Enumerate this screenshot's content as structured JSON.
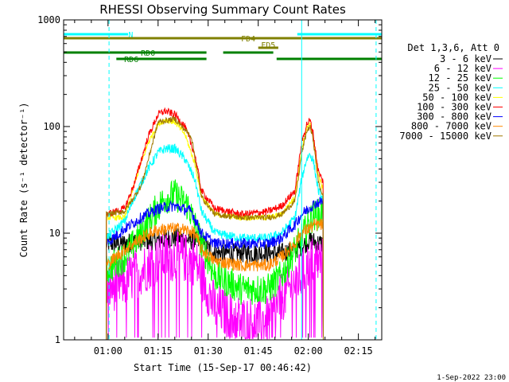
{
  "chart_data": {
    "type": "line",
    "title": "RHESSI Observing Summary Count Rates",
    "xlabel": "Start Time (15-Sep-17 00:46:42)",
    "ylabel": "Count Rate (s⁻¹ detector⁻¹)",
    "y_scale": "log",
    "ylim": [
      1,
      1000
    ],
    "xlim_minutes": [
      46.7,
      142.0
    ],
    "x_ticks": [
      {
        "minute": 60,
        "label": "01:00"
      },
      {
        "minute": 75,
        "label": "01:15"
      },
      {
        "minute": 90,
        "label": "01:30"
      },
      {
        "minute": 105,
        "label": "01:45"
      },
      {
        "minute": 120,
        "label": "02:00"
      },
      {
        "minute": 135,
        "label": "02:15"
      }
    ],
    "y_ticks": [
      {
        "value": 1,
        "label": "1"
      },
      {
        "value": 10,
        "label": "10"
      },
      {
        "value": 100,
        "label": "100"
      },
      {
        "value": 1000,
        "label": "1000"
      }
    ],
    "legend_title": "Det 1,3,6, Att 0",
    "legend_position": "right",
    "x_note": "x values are minutes after 00:00 UT, 15-Sep-17",
    "series": [
      {
        "name": "3 - 6 keV",
        "color": "#000000",
        "x": [
          59.5,
          65,
          70,
          75,
          78,
          82,
          86,
          88,
          92,
          100,
          108,
          112,
          116,
          118,
          120,
          121,
          123,
          124.5
        ],
        "values": [
          8,
          8,
          8.5,
          8.5,
          9,
          9,
          8.5,
          8,
          6.5,
          6.5,
          6.5,
          6.5,
          7,
          7.5,
          8.5,
          8.5,
          8,
          8
        ]
      },
      {
        "name": "6 - 12 keV",
        "color": "#ff00ff",
        "x": [
          59.5,
          65,
          70,
          74,
          78,
          82,
          86,
          88,
          92,
          100,
          108,
          112,
          116,
          118,
          120,
          121,
          123,
          124.5
        ],
        "values": [
          3,
          3.5,
          4.5,
          5.5,
          6,
          6,
          5.5,
          4,
          2,
          1.5,
          1.5,
          2.5,
          3.5,
          4,
          5,
          5.5,
          5.5,
          5.5
        ]
      },
      {
        "name": "12 - 25 keV",
        "color": "#00ff00",
        "x": [
          59.5,
          65,
          70,
          74,
          77,
          80,
          84,
          88,
          92,
          100,
          108,
          112,
          116,
          118,
          120,
          121,
          123,
          124.5
        ],
        "values": [
          4.5,
          6,
          10,
          16,
          21,
          23,
          18,
          8,
          4,
          3,
          3,
          4,
          7,
          9,
          12,
          14,
          15,
          15
        ]
      },
      {
        "name": "25 - 50 keV",
        "color": "#00ffff",
        "x": [
          59.5,
          65,
          68,
          72,
          75,
          77,
          80,
          83,
          86,
          88,
          92,
          100,
          108,
          112,
          116,
          118,
          119.5,
          120.5,
          121.5,
          123,
          124.5
        ],
        "values": [
          9,
          13,
          22,
          40,
          57,
          62,
          62,
          50,
          32,
          16,
          10,
          9,
          9,
          10,
          14,
          32,
          50,
          55,
          48,
          25,
          20
        ]
      },
      {
        "name": "50 - 100 keV",
        "color": "#ffff00",
        "x": [
          59.5,
          65,
          68,
          72,
          75,
          77,
          80,
          83,
          86,
          88,
          92,
          100,
          108,
          112,
          116,
          118,
          119.5,
          120.5,
          121.5,
          123,
          124.5
        ],
        "values": [
          14,
          14,
          30,
          70,
          105,
          115,
          110,
          85,
          45,
          22,
          15,
          14,
          14,
          15,
          22,
          60,
          95,
          105,
          80,
          35,
          25
        ]
      },
      {
        "name": "100 - 300 keV",
        "color": "#ff0000",
        "x": [
          59.5,
          65,
          68,
          72,
          75,
          77,
          80,
          83,
          86,
          88,
          92,
          100,
          108,
          112,
          116,
          118,
          119.5,
          120.5,
          121.5,
          123,
          124.5
        ],
        "values": [
          15,
          17,
          30,
          80,
          130,
          140,
          130,
          100,
          55,
          25,
          17,
          15,
          16,
          18,
          25,
          70,
          105,
          115,
          85,
          38,
          30
        ]
      },
      {
        "name": "300 - 800 keV",
        "color": "#0000ff",
        "x": [
          59.5,
          65,
          70,
          75,
          80,
          85,
          88,
          92,
          100,
          108,
          112,
          116,
          118,
          120,
          122,
          124.5
        ],
        "values": [
          8,
          11,
          14,
          17,
          18,
          16,
          10,
          8,
          8,
          8,
          9,
          12,
          15,
          17,
          19,
          20
        ]
      },
      {
        "name": "800 - 7000 keV",
        "color": "#ff8800",
        "x": [
          59.5,
          65,
          70,
          74,
          78,
          82,
          86,
          88,
          92,
          100,
          108,
          112,
          116,
          118,
          120,
          122,
          124.5
        ],
        "values": [
          5,
          7,
          9,
          10.5,
          11,
          11,
          10,
          7,
          5.5,
          5,
          5,
          6,
          8,
          10,
          11,
          12,
          12
        ]
      },
      {
        "name": "7000 - 15000 keV",
        "color": "#a07800",
        "x": [
          59.5,
          65,
          70,
          75,
          80,
          85,
          88,
          92,
          100,
          108,
          112,
          116,
          118,
          119.5,
          120.5,
          121.5,
          123,
          124.5
        ],
        "values": [
          15,
          16,
          28,
          110,
          118,
          80,
          22,
          15,
          14,
          14,
          15,
          20,
          55,
          90,
          100,
          75,
          30,
          22
        ]
      }
    ],
    "annotations": {
      "flag_bars": [
        {
          "label": "N",
          "color": "#00ffff",
          "segments": [
            [
              46.7,
              66
            ],
            [
              116.7,
              142
            ]
          ]
        },
        {
          "label": "FD4",
          "color": "#808000",
          "segments": [
            [
              46.7,
              142
            ]
          ]
        },
        {
          "label": "FD5",
          "color": "#808000",
          "segments": [
            [
              105,
              111
            ]
          ]
        },
        {
          "label": "RD0",
          "color": "#008000",
          "segments": [
            [
              46.7,
              89.5
            ],
            [
              94.5,
              109.5
            ]
          ]
        },
        {
          "label": "RD6",
          "color": "#008000",
          "segments": [
            [
              62.5,
              89.5
            ],
            [
              110.5,
              142
            ]
          ]
        }
      ],
      "solid_vlines": [
        46.7,
        118.0
      ],
      "dashed_vlines": [
        60.3,
        140.3
      ],
      "data_start_minute": 59.5,
      "data_end_minute": 124.5
    },
    "footer": "1-Sep-2022 23:00"
  }
}
